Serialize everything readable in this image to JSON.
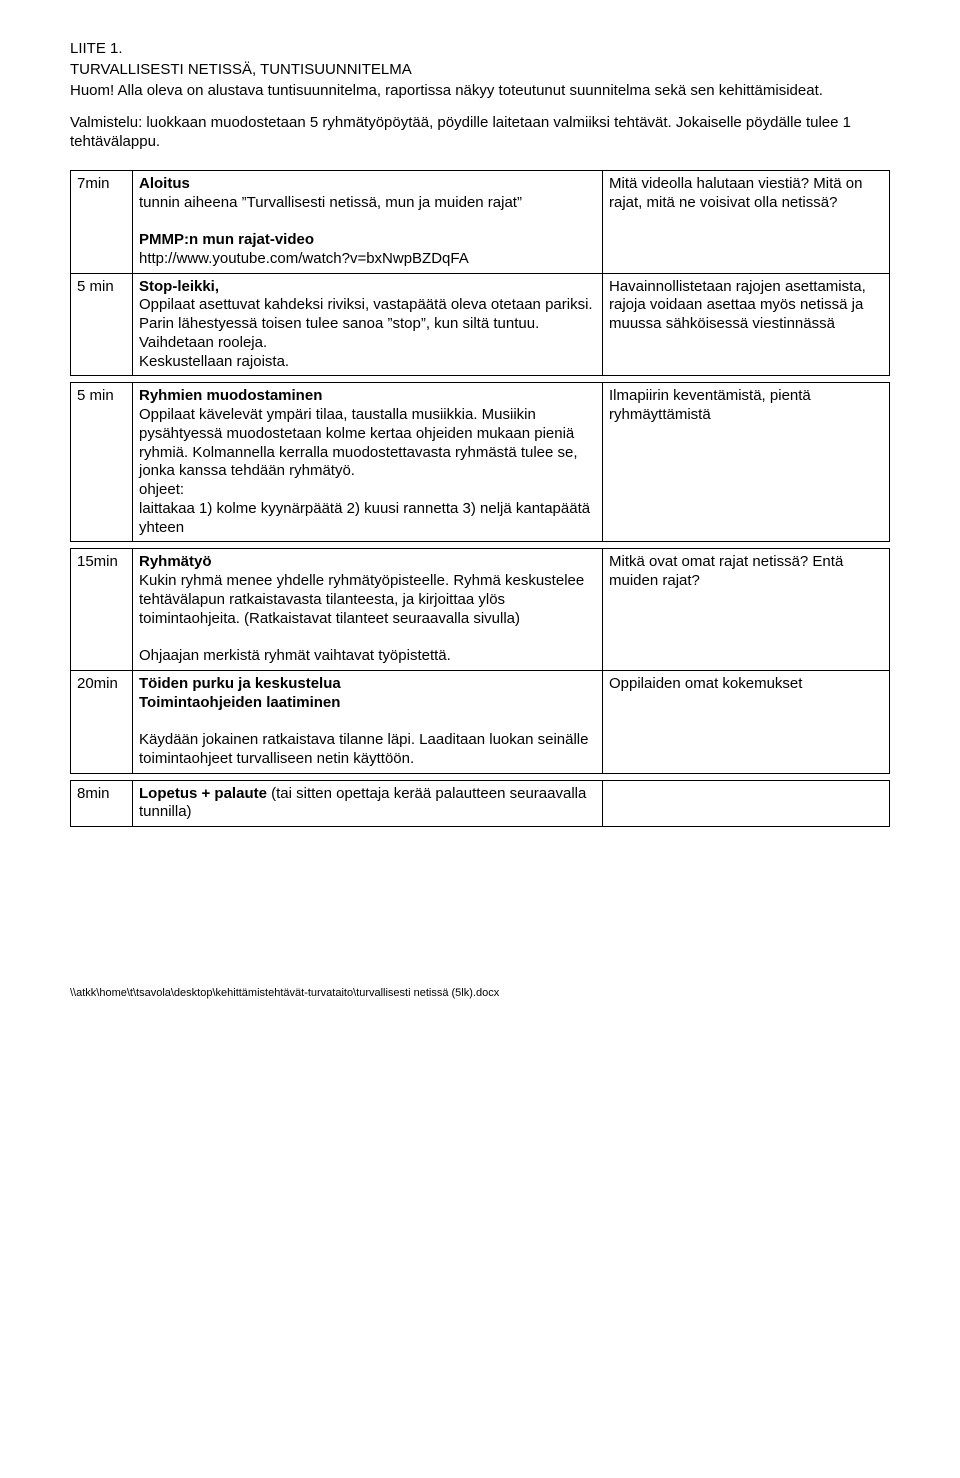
{
  "header": {
    "liite": "LIITE 1.",
    "title": "TURVALLISESTI NETISSÄ, TUNTISUUNNITELMA",
    "intro": "Huom! Alla oleva on alustava tuntisuunnitelma, raportissa näkyy toteutunut suunnitelma sekä sen kehittämisideat.",
    "setup": "Valmistelu: luokkaan muodostetaan 5 ryhmätyöpöytää, pöydille laitetaan valmiiksi tehtävät. Jokaiselle pöydälle tulee 1 tehtävälappu."
  },
  "rows": [
    {
      "time": "7min",
      "activity_title": "Aloitus",
      "activity_lines": [
        "tunnin aiheena ”Turvallisesti netissä, mun ja muiden rajat”",
        "",
        "PMMP:n mun rajat-video",
        "http://www.youtube.com/watch?v=bxNwpBZDqFA"
      ],
      "bold_lines": [
        false,
        false,
        true,
        false
      ],
      "note": "Mitä videolla halutaan viestiä? Mitä on rajat, mitä ne voisivat olla netissä?"
    },
    {
      "time": "5 min",
      "activity_title": "Stop-leikki,",
      "activity_lines": [
        "Oppilaat asettuvat kahdeksi riviksi, vastapäätä oleva otetaan pariksi.",
        "Parin lähestyessä toisen tulee sanoa ”stop”, kun siltä tuntuu. Vaihdetaan rooleja.",
        "Keskustellaan rajoista."
      ],
      "bold_lines": [
        false,
        false,
        false
      ],
      "note": "Havainnollistetaan rajojen asettamista, rajoja voidaan asettaa myös netissä ja muussa sähköisessä viestinnässä"
    },
    {
      "time": "5 min",
      "activity_title": "Ryhmien muodostaminen",
      "activity_lines": [
        "Oppilaat kävelevät ympäri tilaa, taustalla musiikkia. Musiikin pysähtyessä muodostetaan kolme kertaa ohjeiden mukaan pieniä ryhmiä. Kolmannella kerralla muodostettavasta ryhmästä tulee se, jonka kanssa tehdään ryhmätyö.",
        "ohjeet:",
        "laittakaa 1) kolme kyynärpäätä 2) kuusi rannetta 3) neljä kantapäätä yhteen"
      ],
      "bold_lines": [
        false,
        false,
        false
      ],
      "note": "Ilmapiirin keventämistä, pientä ryhmäyttämistä",
      "spacer_before": true
    },
    {
      "time": "15min",
      "activity_title": "Ryhmätyö",
      "activity_lines": [
        "Kukin ryhmä menee yhdelle ryhmätyöpisteelle. Ryhmä keskustelee tehtävälapun ratkaistavasta tilanteesta, ja kirjoittaa ylös toimintaohjeita. (Ratkaistavat tilanteet seuraavalla sivulla)",
        "",
        "Ohjaajan merkistä ryhmät vaihtavat työpistettä."
      ],
      "bold_lines": [
        false,
        false,
        false
      ],
      "note": "Mitkä ovat omat rajat netissä? Entä muiden rajat?",
      "spacer_before": true
    },
    {
      "time": "20min",
      "activity_title2": "Töiden purku ja keskustelua\nToimintaohjeiden laatiminen",
      "activity_lines": [
        "",
        "Käydään jokainen ratkaistava tilanne läpi. Laaditaan luokan seinälle toimintaohjeet turvalliseen netin käyttöön."
      ],
      "bold_lines": [
        false,
        false
      ],
      "note": "Oppilaiden omat kokemukset"
    },
    {
      "time": "8min",
      "activity_inline_bold": "Lopetus + palaute",
      "activity_inline_rest": " (tai sitten opettaja kerää palautteen seuraavalla tunnilla)",
      "note": "",
      "spacer_before": true
    }
  ],
  "footer": "\\\\atkk\\home\\t\\tsavola\\desktop\\kehittämistehtävät-turvataito\\turvallisesti netissä (5lk).docx"
}
